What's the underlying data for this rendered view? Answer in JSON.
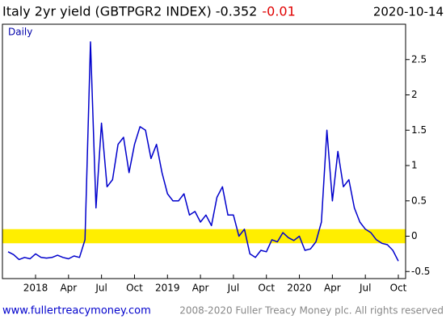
{
  "chart_data": {
    "type": "line",
    "title": "Italy 2yr yield (GBTPGR2 INDEX) -0.352",
    "change": "-0.01",
    "date": "2020-10-14",
    "subtitle": "Daily",
    "footer_link": "www.fullertreacymoney.com",
    "footer_text": "2008-2020 Fuller Treacy Money plc. All rights reserved",
    "categories": [
      null,
      null,
      null,
      null,
      null,
      "2018",
      null,
      null,
      null,
      null,
      null,
      "Apr",
      null,
      null,
      null,
      null,
      null,
      "Jul",
      null,
      null,
      null,
      null,
      null,
      "Oct",
      null,
      null,
      null,
      null,
      null,
      "2019",
      null,
      null,
      null,
      null,
      null,
      "Apr",
      null,
      null,
      null,
      null,
      null,
      "Jul",
      null,
      null,
      null,
      null,
      null,
      "Oct",
      null,
      null,
      null,
      null,
      null,
      "2020",
      null,
      null,
      null,
      null,
      null,
      "Apr",
      null,
      null,
      null,
      null,
      null,
      "Jul",
      null,
      null,
      null,
      null,
      null,
      "Oct"
    ],
    "series": [
      {
        "name": "Italy 2yr yield",
        "color": "#0000cc",
        "values": [
          -0.22,
          -0.26,
          -0.33,
          -0.3,
          -0.32,
          -0.25,
          -0.3,
          -0.31,
          -0.3,
          -0.27,
          -0.3,
          -0.32,
          -0.28,
          -0.3,
          -0.05,
          2.75,
          0.4,
          1.6,
          0.7,
          0.8,
          1.3,
          1.4,
          0.9,
          1.3,
          1.55,
          1.5,
          1.1,
          1.3,
          0.9,
          0.6,
          0.5,
          0.5,
          0.6,
          0.3,
          0.35,
          0.2,
          0.3,
          0.15,
          0.55,
          0.7,
          0.3,
          0.3,
          0.0,
          0.1,
          -0.25,
          -0.3,
          -0.2,
          -0.22,
          -0.05,
          -0.08,
          0.05,
          -0.02,
          -0.06,
          0.0,
          -0.2,
          -0.18,
          -0.08,
          0.2,
          1.5,
          0.5,
          1.2,
          0.7,
          0.8,
          0.4,
          0.2,
          0.1,
          0.05,
          -0.05,
          -0.1,
          -0.12,
          -0.2,
          -0.352
        ]
      }
    ],
    "ylim": [
      -0.6,
      3.0
    ],
    "yticks": [
      -0.5,
      0,
      0.5,
      1,
      1.5,
      2,
      2.5
    ],
    "band": [
      -0.1,
      0.1
    ],
    "band_color": "#ffee00",
    "grid": false
  }
}
